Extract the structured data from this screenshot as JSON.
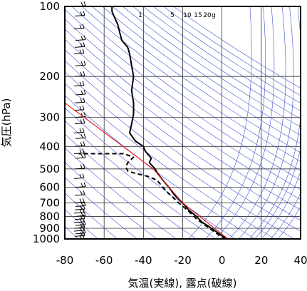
{
  "chart_data": {
    "type": "line",
    "title": "",
    "xlabel": "気温(実線), 露点(破線)",
    "ylabel": "気圧(hPa)",
    "xlim": [
      -80,
      40
    ],
    "ylim": [
      1000,
      100
    ],
    "yscale": "log",
    "x_ticks": [
      "-80",
      "-60",
      "-40",
      "-20",
      "0",
      "20",
      "40"
    ],
    "y_ticks": [
      "100",
      "200",
      "300",
      "400",
      "500",
      "600",
      "700",
      "800",
      "900",
      "1000"
    ],
    "mixing_ratio_labels": [
      "1",
      "5",
      "10",
      "15",
      "20",
      "g"
    ],
    "series": [
      {
        "style": "solid",
        "color": "#000000",
        "points": [
          [
            3,
            1000
          ],
          [
            0,
            970
          ],
          [
            -3,
            930
          ],
          [
            -7,
            880
          ],
          [
            -10,
            850
          ],
          [
            -13,
            800
          ],
          [
            -17,
            750
          ],
          [
            -20,
            700
          ],
          [
            -24,
            650
          ],
          [
            -27,
            600
          ],
          [
            -30,
            560
          ],
          [
            -33,
            520
          ],
          [
            -34,
            500
          ],
          [
            -37,
            470
          ],
          [
            -36,
            450
          ],
          [
            -39,
            420
          ],
          [
            -40,
            400
          ],
          [
            -44,
            380
          ],
          [
            -47,
            350
          ],
          [
            -46,
            320
          ],
          [
            -45,
            290
          ],
          [
            -45,
            260
          ],
          [
            -46,
            230
          ],
          [
            -45,
            200
          ],
          [
            -46,
            180
          ],
          [
            -47,
            160
          ],
          [
            -48,
            150
          ],
          [
            -51,
            140
          ],
          [
            -52,
            130
          ],
          [
            -53,
            120
          ],
          [
            -55,
            110
          ],
          [
            -56,
            105
          ],
          [
            -56,
            100
          ]
        ]
      },
      {
        "style": "dashed",
        "color": "#000000",
        "points": [
          [
            2,
            1000
          ],
          [
            -1,
            970
          ],
          [
            -4,
            930
          ],
          [
            -8,
            880
          ],
          [
            -13,
            820
          ],
          [
            -17,
            760
          ],
          [
            -22,
            700
          ],
          [
            -27,
            640
          ],
          [
            -30,
            600
          ],
          [
            -33,
            560
          ],
          [
            -37,
            540
          ],
          [
            -45,
            520
          ],
          [
            -48,
            510
          ],
          [
            -49,
            490
          ],
          [
            -48,
            470
          ],
          [
            -45,
            445
          ],
          [
            -50,
            430
          ],
          [
            -66,
            430
          ],
          [
            -73,
            430
          ]
        ]
      },
      {
        "style": "solid",
        "color": "#dd2222",
        "points": [
          [
            3,
            1000
          ],
          [
            -20,
            700
          ],
          [
            -35,
            500
          ],
          [
            -80,
            260
          ]
        ]
      }
    ],
    "wind_barbs": [
      1000,
      975,
      950,
      925,
      900,
      875,
      850,
      825,
      800,
      775,
      750,
      725,
      700,
      650,
      600,
      550,
      500,
      450,
      430,
      400,
      370,
      350,
      320,
      300,
      280,
      260,
      240,
      220,
      200,
      180,
      160,
      150,
      140,
      125,
      110,
      100
    ]
  }
}
